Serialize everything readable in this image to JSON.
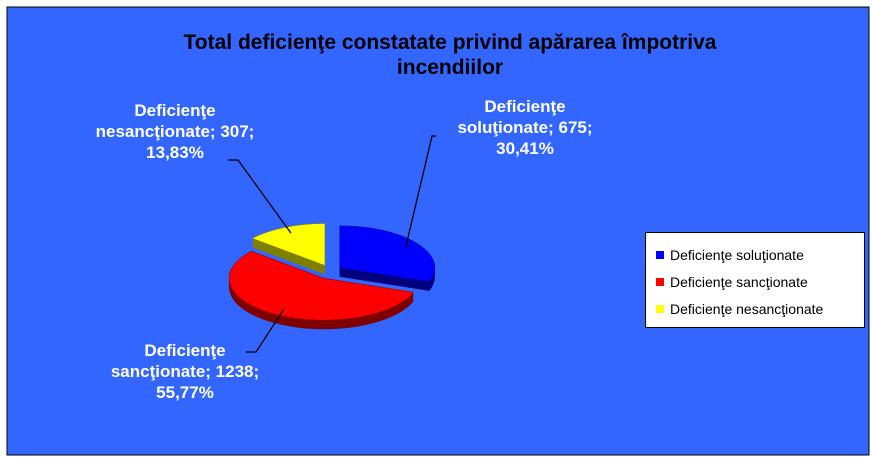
{
  "chart_data": {
    "type": "pie",
    "title": "Total deficienţe constatate privind apărarea împotriva incendiilor",
    "categories": [
      "Deficienţe soluţionate",
      "Deficienţe sancţionate",
      "Deficienţe nesancţionate"
    ],
    "values": [
      675,
      1238,
      307
    ],
    "value_labels": [
      "Deficienţe soluţionate; 675; 30,41%",
      "Deficienţe sancţionate; 1238; 55,77%",
      "Deficienţe nesancţionate; 307; 13,83%"
    ],
    "colors": [
      "#0000ff",
      "#ff0000",
      "#ffff00"
    ],
    "legend": "right"
  }
}
